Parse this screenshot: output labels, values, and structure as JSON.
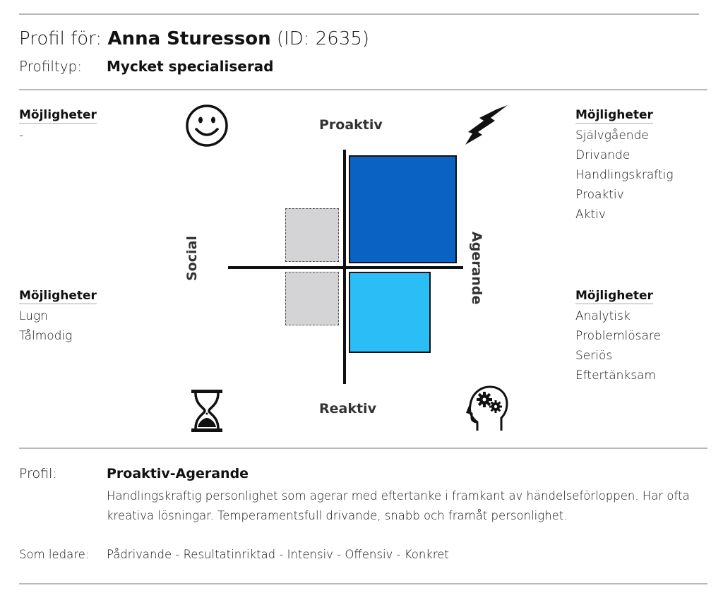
{
  "header": {
    "prefix": "Profil för:",
    "name": "Anna Sturesson",
    "id": "(ID: 2635)",
    "profiltyp_label": "Profiltyp:",
    "profiltyp_value": "Mycket specialiserad"
  },
  "quadrants": {
    "top_left": {
      "heading": "Möjligheter",
      "items": [
        "-"
      ]
    },
    "top_right": {
      "heading": "Möjligheter",
      "items": [
        "Självgående",
        "Drivande",
        "Handlingskraftig",
        "Proaktiv",
        "Aktiv"
      ]
    },
    "bottom_left": {
      "heading": "Möjligheter",
      "items": [
        "Lugn",
        "Tålmodig"
      ]
    },
    "bottom_right": {
      "heading": "Möjligheter",
      "items": [
        "Analytisk",
        "Problemlösare",
        "Seriös",
        "Eftertänksam"
      ]
    }
  },
  "axes": {
    "top": "Proaktiv",
    "bottom": "Reaktiv",
    "left": "Social",
    "right": "Agerande"
  },
  "icons": {
    "top_left": "smiley-icon",
    "top_right": "lightning-icon",
    "bottom_left": "hourglass-icon",
    "bottom_right": "head-gears-icon"
  },
  "colors": {
    "proaktiv_agerande": "#0a63c2",
    "reaktiv_agerande": "#2bbdf5",
    "inactive": "#d4d4d6"
  },
  "profile": {
    "label": "Profil:",
    "type": "Proaktiv-Agerande",
    "description": "Handlingskraftig personlighet som agerar med eftertanke i framkant av händelseförloppen. Har ofta kreativa lösningar. Temperamentsfull drivande, snabb och framåt personlighet.",
    "leader_label": "Som ledare:",
    "leader_value": "Pådrivande - Resultatinriktad - Intensiv - Offensiv - Konkret"
  }
}
